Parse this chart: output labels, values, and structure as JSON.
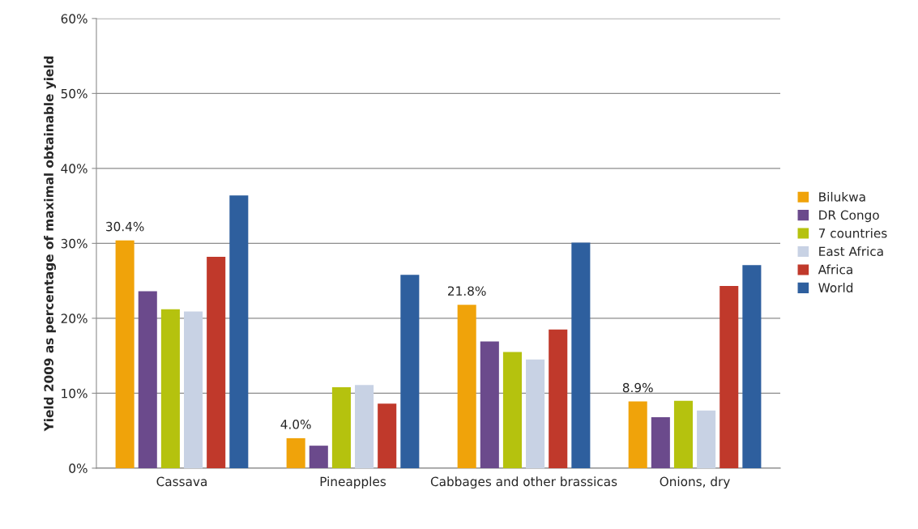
{
  "chart_data": {
    "type": "bar",
    "ylabel": "Yield 2009 as percentage of maximal obtainable yield",
    "categories": [
      "Cassava",
      "Pineapples",
      "Cabbages and other brassicas",
      "Onions, dry"
    ],
    "series": [
      {
        "name": "Bilukwa",
        "color": "#f0a30a",
        "values": [
          30.4,
          4.0,
          21.8,
          8.9
        ],
        "value_labels": [
          "30.4%",
          "4.0%",
          "21.8%",
          "8.9%"
        ]
      },
      {
        "name": "DR Congo",
        "color": "#6b4a8c",
        "values": [
          23.6,
          3.0,
          16.9,
          6.8
        ]
      },
      {
        "name": "7 countries",
        "color": "#b5c20e",
        "values": [
          21.2,
          10.8,
          15.5,
          9.0
        ]
      },
      {
        "name": "East Africa",
        "color": "#c8d2e4",
        "values": [
          20.9,
          11.1,
          14.5,
          7.7
        ]
      },
      {
        "name": "Africa",
        "color": "#c0392b",
        "values": [
          28.2,
          8.6,
          18.5,
          24.3
        ]
      },
      {
        "name": "World",
        "color": "#2e5f9e",
        "values": [
          36.4,
          25.8,
          30.1,
          27.1
        ]
      }
    ],
    "ylim": [
      0,
      60
    ],
    "yticks": [
      {
        "value": 0,
        "label": "0%"
      },
      {
        "value": 10,
        "label": "10%"
      },
      {
        "value": 20,
        "label": "20%"
      },
      {
        "value": 30,
        "label": "30%"
      },
      {
        "value": 40,
        "label": "40%"
      },
      {
        "value": 50,
        "label": "50%"
      },
      {
        "value": 60,
        "label": "60%"
      }
    ],
    "grid": "y",
    "legend": "right"
  }
}
